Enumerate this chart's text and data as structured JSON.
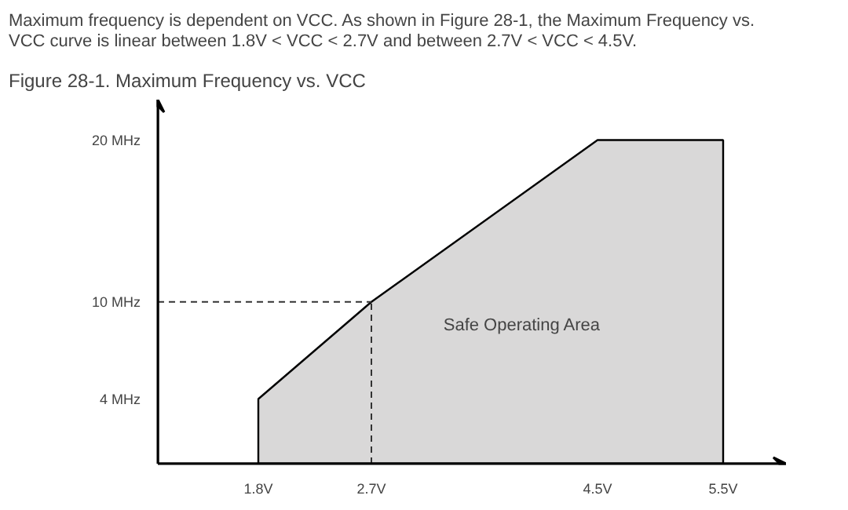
{
  "chart_data": {
    "type": "area",
    "title": "Figure 28-1.   Maximum Frequency vs. VCC",
    "subtitle": "Maximum frequency is dependent on VCC. As shown in Figure 28-1, the Maximum Frequency vs.\nVCC curve is linear between 1.8V < VCC < 2.7V and between 2.7V < VCC < 4.5V.",
    "x": [
      1.8,
      2.7,
      4.5,
      5.5
    ],
    "series": [
      {
        "color": "#d9d8d8",
        "values": [
          4,
          10,
          20,
          20
        ]
      }
    ],
    "xlim": [
      1.0,
      6.0
    ],
    "ylim": [
      0,
      22.5
    ],
    "xticks": [
      {
        "value": 1.8,
        "label": "1.8V"
      },
      {
        "value": 2.7,
        "label": "2.7V"
      },
      {
        "value": 4.5,
        "label": "4.5V"
      },
      {
        "value": 5.5,
        "label": "5.5V"
      }
    ],
    "yticks": [
      {
        "value": 4,
        "label": "4 MHz"
      },
      {
        "value": 10,
        "label": "10 MHz"
      },
      {
        "value": 20,
        "label": "20 MHz"
      }
    ],
    "ref_lines": [
      {
        "axis": "y",
        "value": 10,
        "label": null,
        "line_style": "dashed",
        "color": "#333333"
      },
      {
        "axis": "x",
        "value": 2.7,
        "label": null,
        "line_style": "dashed",
        "color": "#333333"
      }
    ],
    "annotations": [
      "Safe Operating Area"
    ],
    "grid": false
  }
}
